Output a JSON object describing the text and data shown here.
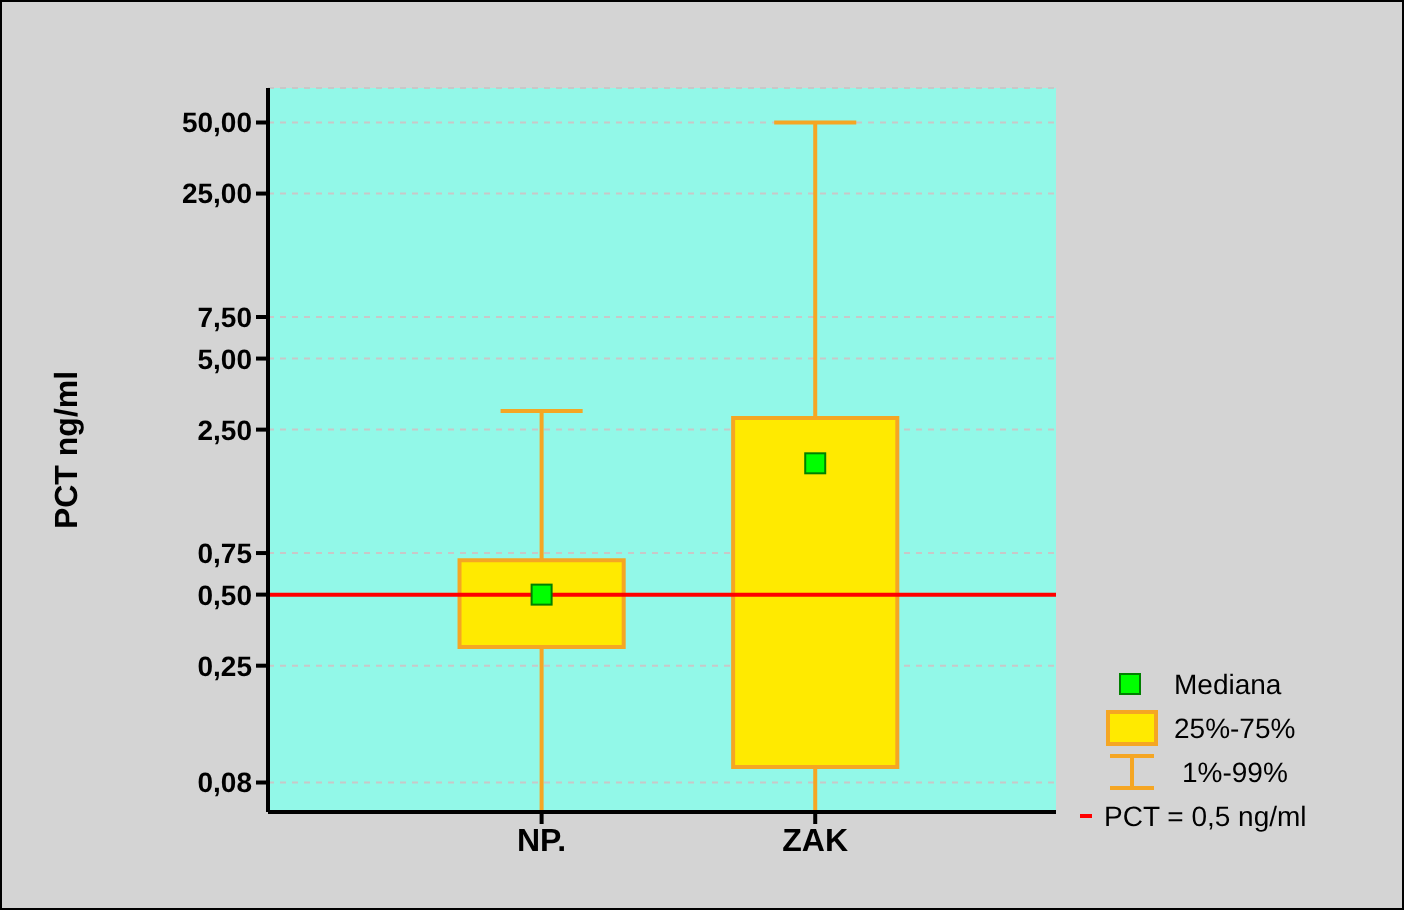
{
  "chart_data": {
    "type": "box",
    "ylabel": "PCT ng/ml",
    "categories": [
      "NP.",
      "ZAK"
    ],
    "series": [
      {
        "name": "25%-75%",
        "color": "#ffea00",
        "boxes": [
          {
            "low": 0.06,
            "q1": 0.3,
            "median": 0.5,
            "q3": 0.7,
            "high": 3
          },
          {
            "low": 0.06,
            "q1": 0.093,
            "median": 1.8,
            "q3": 2.8,
            "high": 50
          }
        ]
      }
    ],
    "annotations": [
      "Mediana",
      "1%-99%"
    ],
    "log": true,
    "ylim": [
      0.06,
      70
    ],
    "yticks": [
      {
        "value": 0.08,
        "label": "0,08"
      },
      {
        "value": 0.25,
        "label": "0,25"
      },
      {
        "value": 0.5,
        "label": "0,50"
      },
      {
        "value": 0.75,
        "label": "0,75"
      },
      {
        "value": 2.5,
        "label": "2,50"
      },
      {
        "value": 5,
        "label": "5,00"
      },
      {
        "value": 7.5,
        "label": "7,50"
      },
      {
        "value": 25,
        "label": "25,00"
      },
      {
        "value": 50,
        "label": "50,00"
      }
    ],
    "ref_lines": [
      {
        "axis": "y",
        "value": 0.5,
        "label": "PCT = 0,5 ng/ml",
        "color": "#ff0000"
      }
    ],
    "grid": "y",
    "legend": "bottom right",
    "marker": "square"
  }
}
